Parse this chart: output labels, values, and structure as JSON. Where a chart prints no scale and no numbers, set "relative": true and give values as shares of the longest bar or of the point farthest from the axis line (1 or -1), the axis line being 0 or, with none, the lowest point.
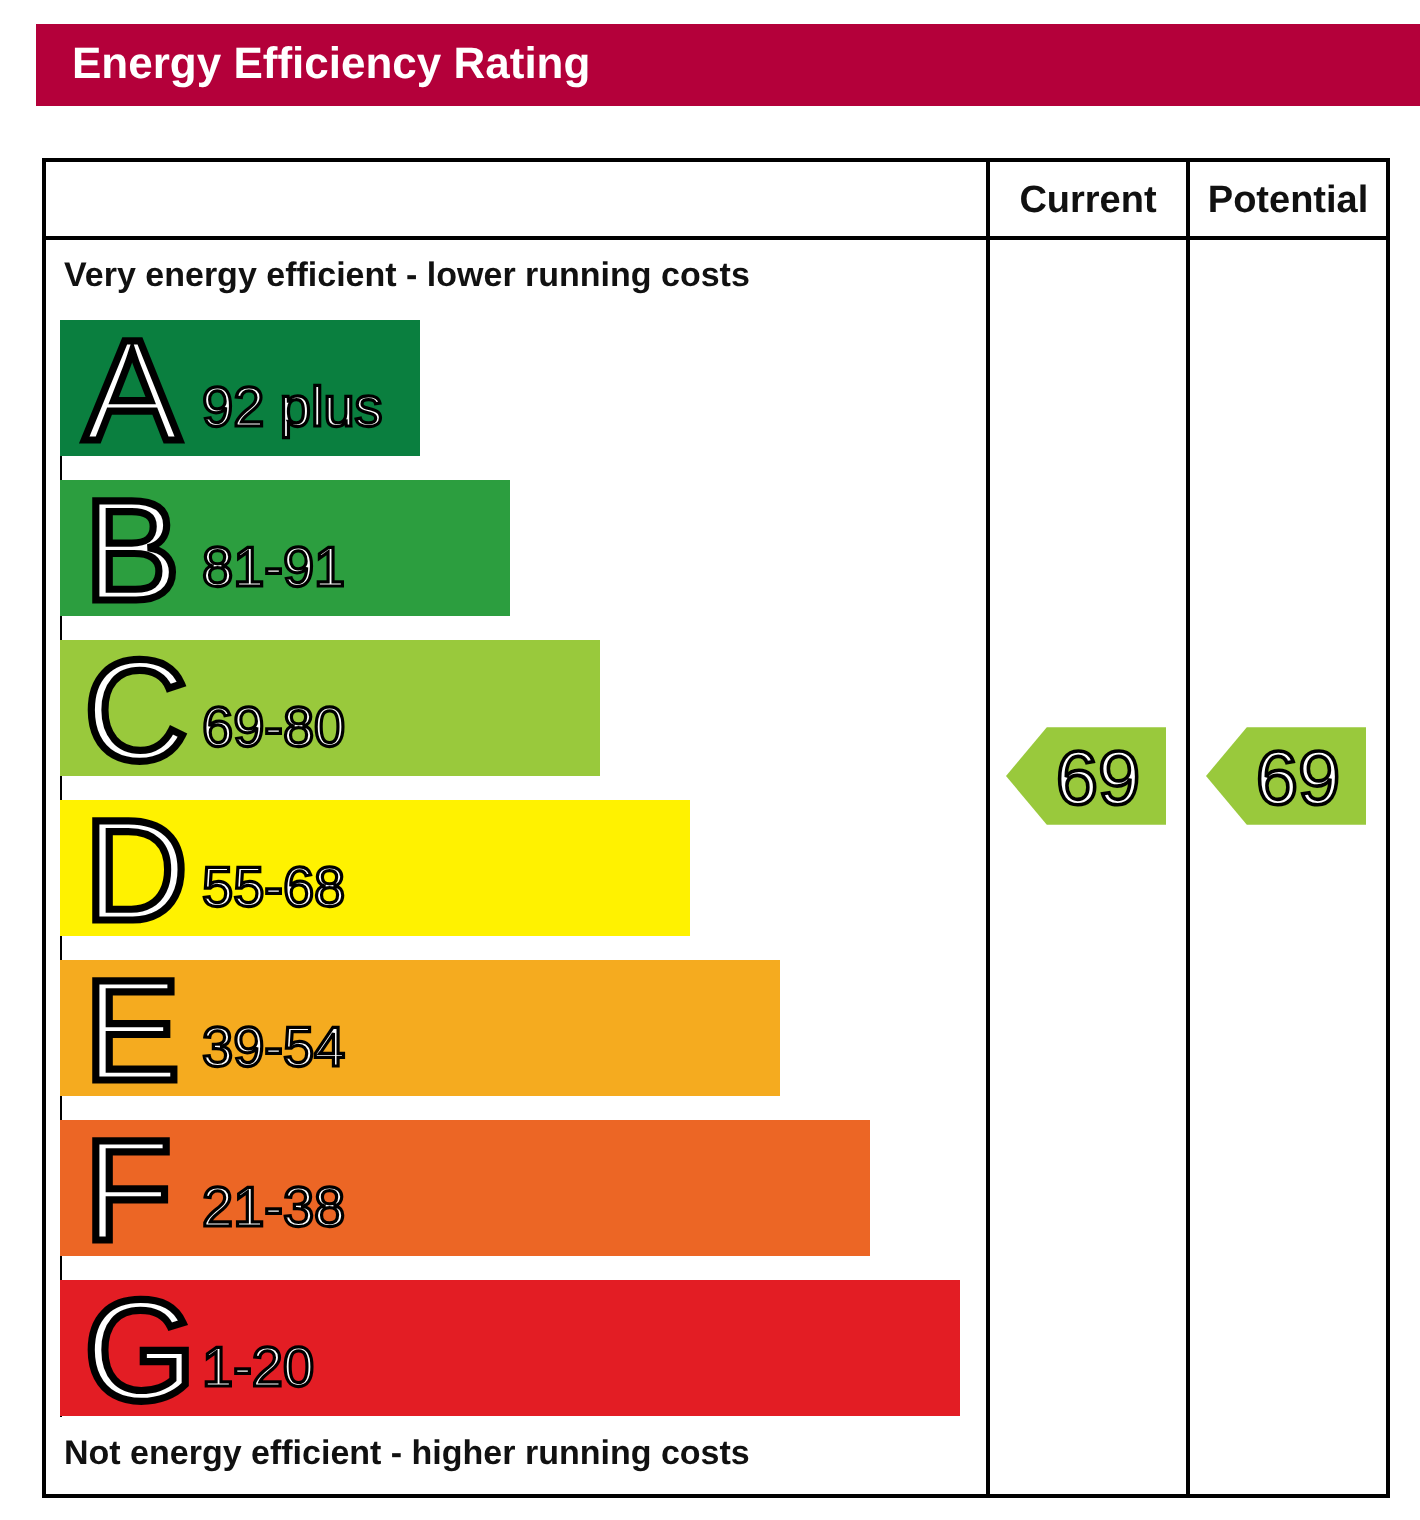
{
  "chart_data": [
    {
      "type": "bar",
      "orientation": "horizontal",
      "relative": true,
      "title": "Energy Efficiency Rating",
      "categories": [
        "A",
        "B",
        "C",
        "D",
        "E",
        "F",
        "G"
      ],
      "values": [
        0.4,
        0.5,
        0.6,
        0.7,
        0.8,
        0.9,
        1
      ],
      "colors": [
        "#0a7f3f",
        "#2c9e3f",
        "#99c93c",
        "#fff200",
        "#f5ab1f",
        "#ec6625",
        "#e31d24"
      ],
      "annotations": [
        "Very energy efficient - lower running costs",
        "Not energy efficient - higher running costs",
        {
          "text": "92 plus",
          "y": "A"
        },
        {
          "text": "81-91",
          "y": "B"
        },
        {
          "text": "69-80",
          "y": "C"
        },
        {
          "text": "55-68",
          "y": "D"
        },
        {
          "text": "39-54",
          "y": "E"
        },
        {
          "text": "21-38",
          "y": "F"
        },
        {
          "text": "1-20",
          "y": "G"
        }
      ]
    },
    {
      "type": "other",
      "categories": [
        "Current",
        "Potential"
      ],
      "values": [
        69,
        69
      ],
      "colors": [
        "#99c93c",
        "#99c93c"
      ],
      "data_labels": true
    }
  ]
}
